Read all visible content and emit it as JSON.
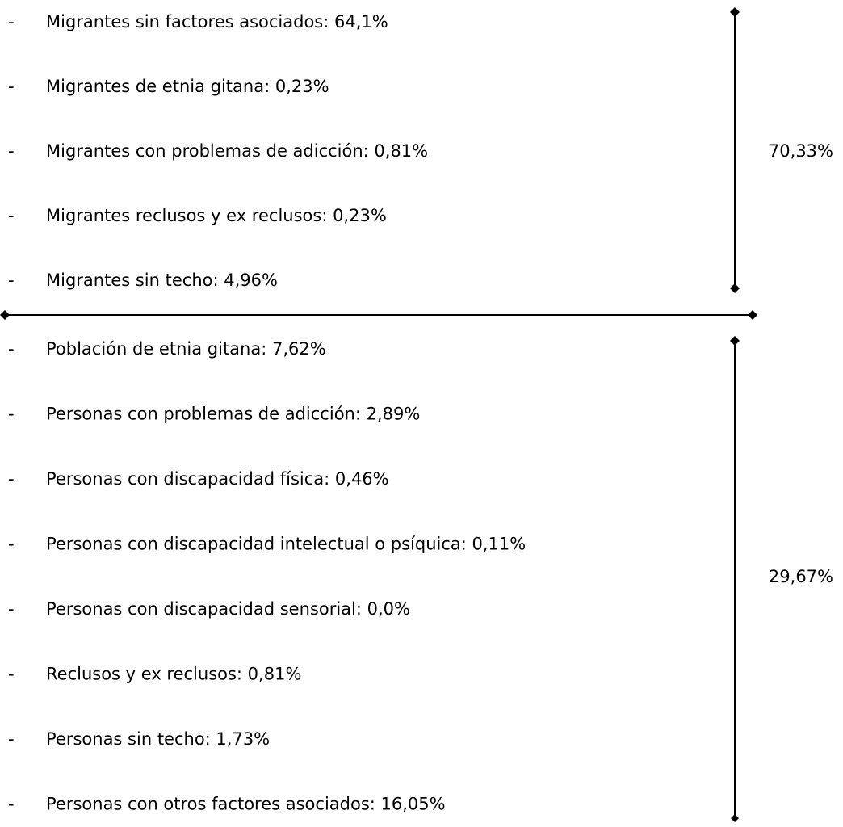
{
  "bullet": "-",
  "groups": [
    {
      "items": [
        "Migrantes sin factores asociados: 64,1%",
        "Migrantes de etnia gitana: 0,23%",
        "Migrantes con problemas de adicción: 0,81%",
        "Migrantes reclusos y ex reclusos: 0,23%",
        "Migrantes sin techo: 4,96%"
      ],
      "total": "70,33%"
    },
    {
      "items": [
        "Población de etnia gitana: 7,62%",
        "Personas con problemas de adicción: 2,89%",
        "Personas con discapacidad física: 0,46%",
        "Personas con discapacidad intelectual o psíquica: 0,11%",
        "Personas con discapacidad sensorial: 0,0%",
        "Reclusos y ex reclusos: 0,81%",
        "Personas sin techo: 1,73%",
        "Personas con otros factores asociados: 16,05%"
      ],
      "total": "29,67%"
    }
  ]
}
